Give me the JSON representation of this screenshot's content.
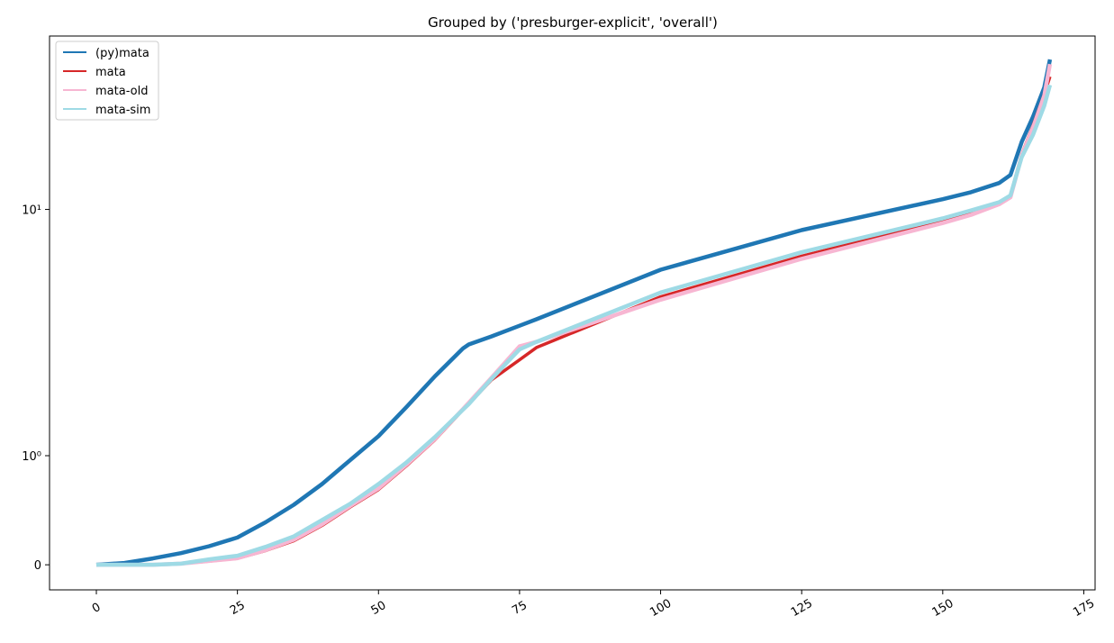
{
  "chart_data": {
    "type": "line",
    "title": "Grouped by ('presburger-explicit', 'overall')",
    "x": [
      0,
      5,
      10,
      15,
      20,
      25,
      30,
      35,
      40,
      45,
      50,
      55,
      60,
      65,
      66,
      70,
      75,
      78,
      100,
      125,
      150,
      155,
      160,
      162,
      164,
      166,
      168,
      169
    ],
    "series": [
      {
        "name": "(py)mata",
        "color": "#1f77b4",
        "values": [
          0,
          0.017,
          0.058,
          0.107,
          0.17,
          0.25,
          0.39,
          0.55,
          0.74,
          0.96,
          1.2,
          1.58,
          2.1,
          2.73,
          2.83,
          3.05,
          3.37,
          3.58,
          5.69,
          8.24,
          11.0,
          11.75,
          12.8,
          13.8,
          18.8,
          23.8,
          31.3,
          40.6
        ]
      },
      {
        "name": "mata",
        "color": "#d62728",
        "values": [
          0,
          0,
          0,
          0.01,
          0.033,
          0.058,
          0.13,
          0.22,
          0.36,
          0.53,
          0.69,
          0.91,
          1.16,
          1.54,
          1.62,
          2.03,
          2.45,
          2.75,
          4.42,
          6.46,
          8.98,
          9.7,
          10.7,
          11.4,
          16.7,
          21.9,
          29.4,
          34.6
        ]
      },
      {
        "name": "mata-old",
        "color": "#f7b6d2",
        "values": [
          0,
          0,
          0,
          0.01,
          0.035,
          0.06,
          0.135,
          0.23,
          0.37,
          0.54,
          0.7,
          0.92,
          1.17,
          1.55,
          1.64,
          2.07,
          2.78,
          2.9,
          4.3,
          6.3,
          8.8,
          9.5,
          10.5,
          11.2,
          16.5,
          21.5,
          29.0,
          38.9
        ]
      },
      {
        "name": "mata-sim",
        "color": "#9edae5",
        "values": [
          0,
          0,
          0,
          0.01,
          0.05,
          0.083,
          0.165,
          0.26,
          0.41,
          0.56,
          0.74,
          0.94,
          1.19,
          1.54,
          1.62,
          2.05,
          2.7,
          2.9,
          4.6,
          6.7,
          9.2,
          9.9,
          10.7,
          11.4,
          16.3,
          20.1,
          26.4,
          32.0
        ]
      }
    ],
    "xlim": [
      -8.3,
      177
    ],
    "xticks": [
      0,
      25,
      50,
      75,
      100,
      125,
      150,
      175
    ],
    "ylim": [
      -0.23,
      50.6
    ],
    "yticks": [
      0,
      {
        "value": 1,
        "label": "10⁰"
      },
      {
        "value": 10,
        "label": "10¹"
      }
    ],
    "yscale": "symlog",
    "legend": "upper left"
  }
}
